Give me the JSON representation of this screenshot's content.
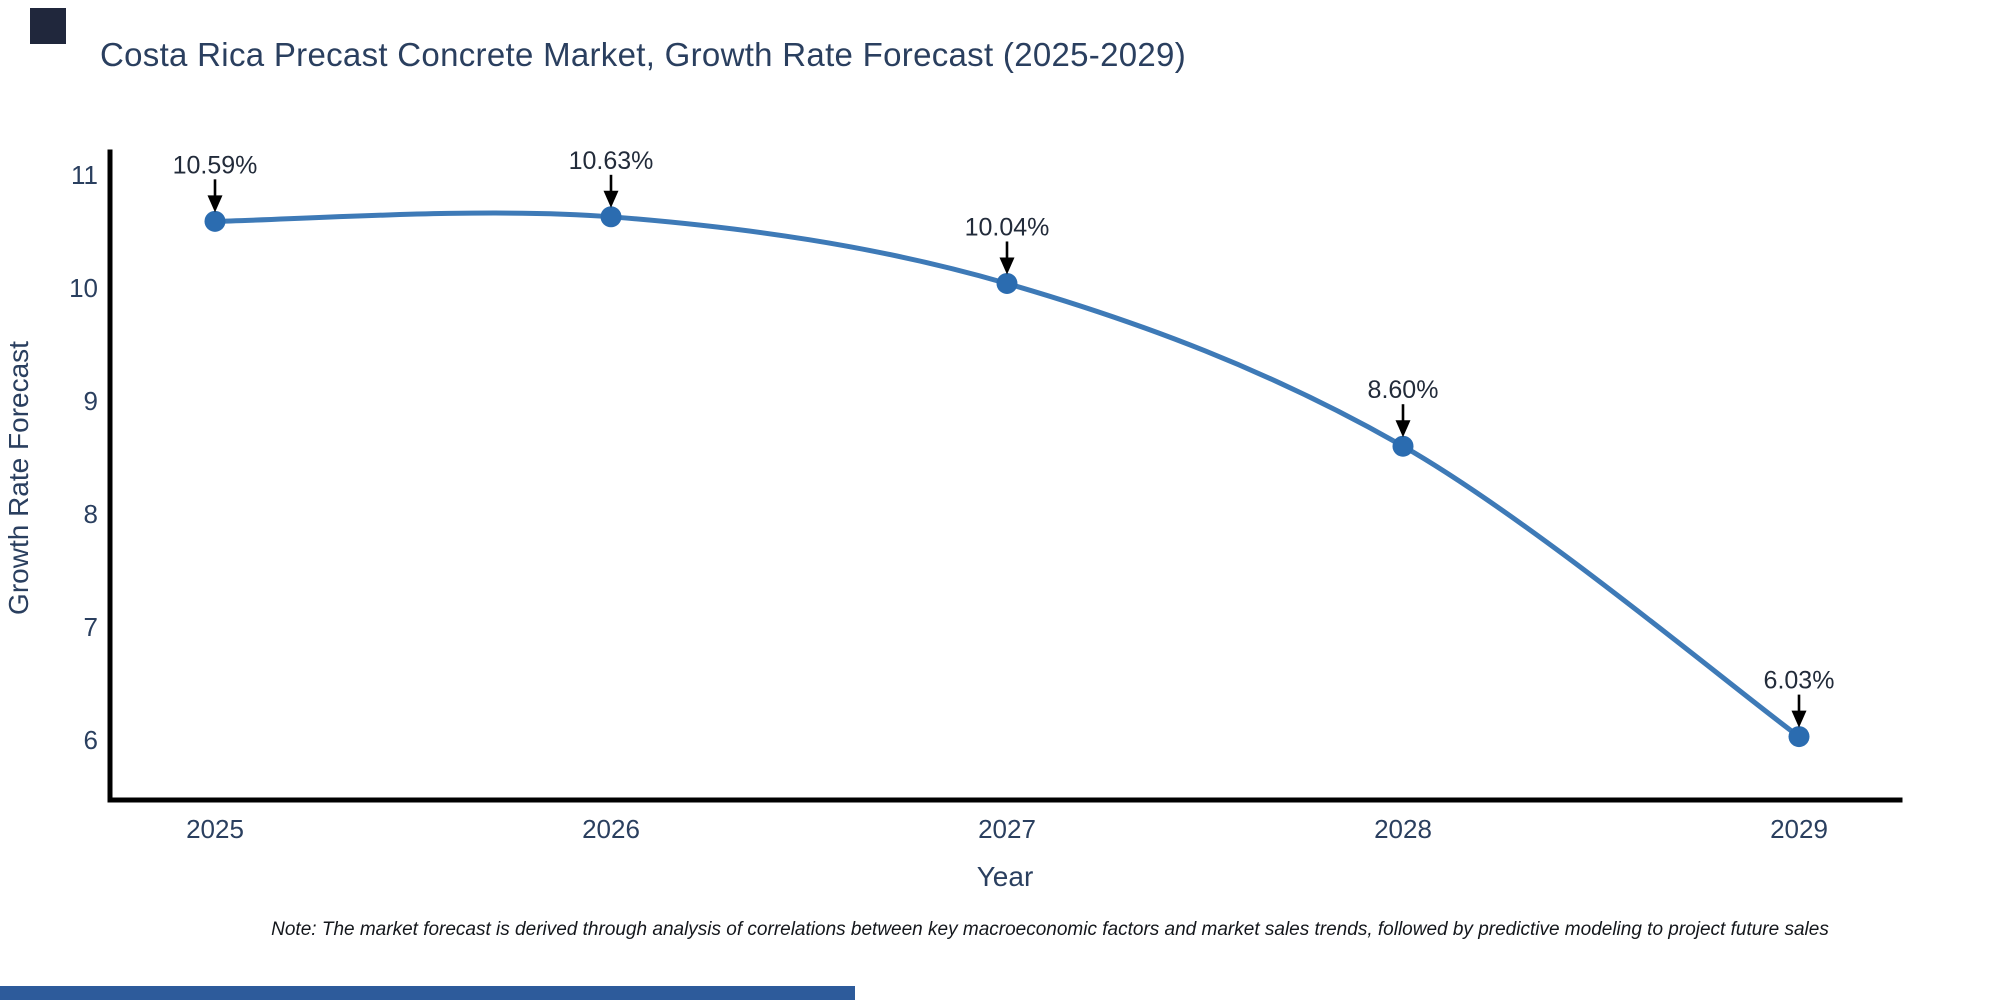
{
  "page": {
    "title": "Costa Rica Precast Concrete Market, Growth Rate Forecast (2025-2029)",
    "note": "Note: The market forecast is derived through analysis of correlations between key macroeconomic factors and market sales trends, followed by predictive modeling to project future sales",
    "colors": {
      "title_text": "#2a3f5f",
      "axis_text": "#2a3f5f",
      "annotation_text": "#222b3a",
      "line": "#3e7ab7",
      "marker": "#2b6cb0",
      "spine": "#000000",
      "arrow": "#000000",
      "note_text": "#14171c",
      "logo": "#20273c",
      "footer_bar": "#2d5b9b"
    }
  },
  "chart_data": {
    "type": "line",
    "title": "Costa Rica Precast Concrete Market, Growth Rate Forecast (2025-2029)",
    "xlabel": "Year",
    "ylabel": "Growth Rate Forecast",
    "x": [
      2025,
      2026,
      2027,
      2028,
      2029
    ],
    "y": [
      10.59,
      10.63,
      10.04,
      8.6,
      6.03
    ],
    "point_labels": [
      "10.59%",
      "10.63%",
      "10.04%",
      "8.60%",
      "6.03%"
    ],
    "yticks": [
      6,
      7,
      8,
      9,
      10,
      11
    ],
    "ylim": [
      5.45,
      11.2
    ],
    "grid": false,
    "legend_position": "none",
    "line_shape": "spline",
    "marker": "circle",
    "annotation_style": "label-with-down-arrow"
  }
}
